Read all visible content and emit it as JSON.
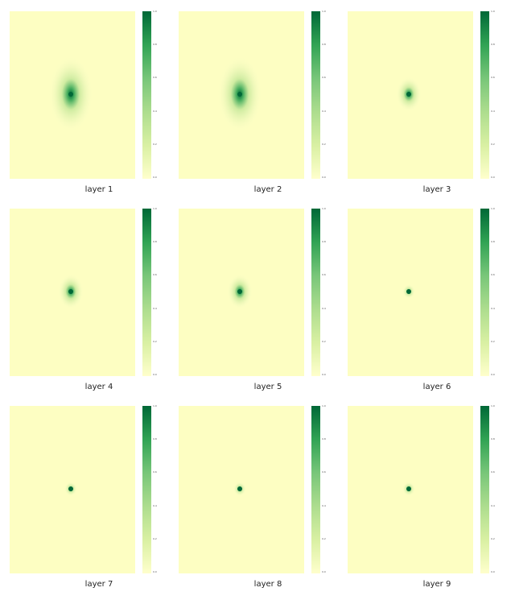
{
  "chart_data": {
    "type": "heatmap",
    "colormap": "YlGn",
    "colorbar_ticks": [
      "0.0",
      "0.2",
      "0.4",
      "0.6",
      "0.8",
      "1.0"
    ],
    "panels": [
      {
        "title": "layer 1",
        "peak": 1.0,
        "spread": "wide"
      },
      {
        "title": "layer 2",
        "peak": 1.0,
        "spread": "wide"
      },
      {
        "title": "layer 3",
        "peak": 1.0,
        "spread": "medium"
      },
      {
        "title": "layer 4",
        "peak": 1.0,
        "spread": "medium"
      },
      {
        "title": "layer 5",
        "peak": 1.0,
        "spread": "medium"
      },
      {
        "title": "layer 6",
        "peak": 1.0,
        "spread": "narrow"
      },
      {
        "title": "layer 7",
        "peak": 1.0,
        "spread": "narrow"
      },
      {
        "title": "layer 8",
        "peak": 1.0,
        "spread": "narrow"
      },
      {
        "title": "layer 9",
        "peak": 1.0,
        "spread": "narrow"
      }
    ]
  }
}
